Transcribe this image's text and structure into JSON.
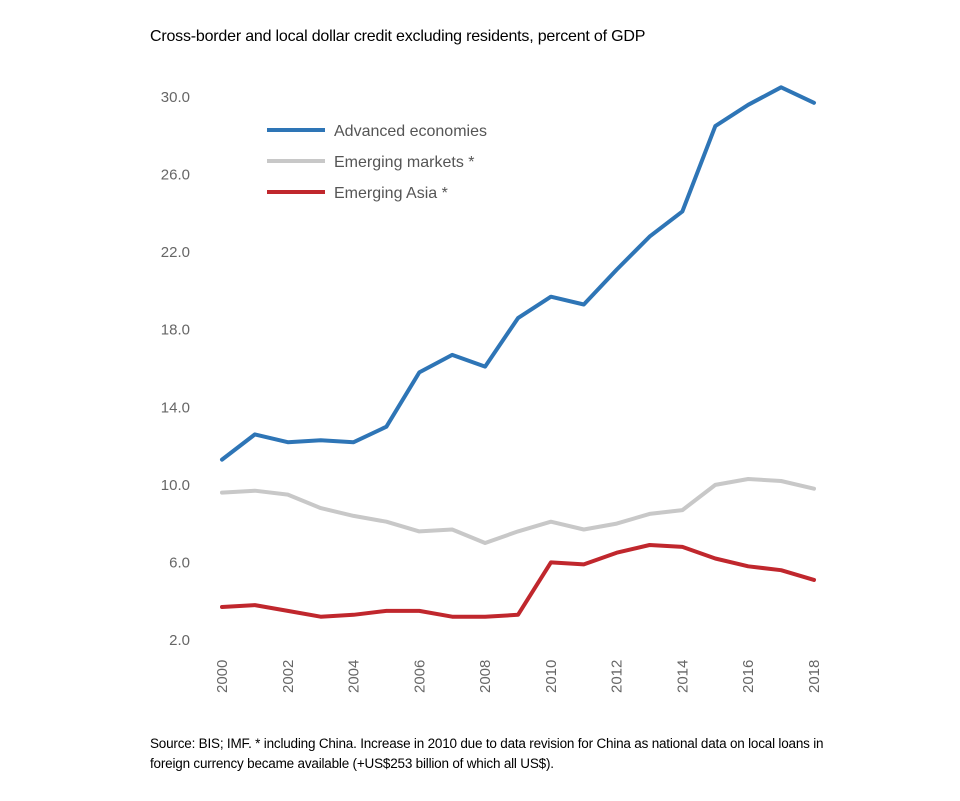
{
  "chart_data": {
    "type": "line",
    "title": "Cross-border and local dollar credit excluding residents, percent of GDP",
    "xlabel": "",
    "ylabel": "",
    "x": [
      2000,
      2001,
      2002,
      2003,
      2004,
      2005,
      2006,
      2007,
      2008,
      2009,
      2010,
      2011,
      2012,
      2013,
      2014,
      2015,
      2016,
      2017,
      2018
    ],
    "x_tick_labels": [
      "2000",
      "2002",
      "2004",
      "2006",
      "2008",
      "2010",
      "2012",
      "2014",
      "2016",
      "2018"
    ],
    "y_tick_labels": [
      "2.0",
      "6.0",
      "10.0",
      "14.0",
      "18.0",
      "22.0",
      "26.0",
      "30.0"
    ],
    "ylim": [
      2.0,
      30.0
    ],
    "grid": false,
    "legend_position": "top-left",
    "series": [
      {
        "name": "Advanced economies",
        "color": "#2e75b6",
        "values": [
          11.3,
          12.6,
          12.2,
          12.3,
          12.2,
          13.0,
          15.8,
          16.7,
          16.1,
          18.6,
          19.7,
          19.3,
          21.1,
          22.8,
          24.1,
          28.5,
          29.6,
          30.5,
          29.7
        ]
      },
      {
        "name": "Emerging markets *",
        "color": "#c8c8c8",
        "values": [
          9.6,
          9.7,
          9.5,
          8.8,
          8.4,
          8.1,
          7.6,
          7.7,
          7.0,
          7.6,
          8.1,
          7.7,
          8.0,
          8.5,
          8.7,
          10.0,
          10.3,
          10.2,
          9.8
        ]
      },
      {
        "name": "Emerging Asia *",
        "color": "#c0272d",
        "values": [
          3.7,
          3.8,
          3.5,
          3.2,
          3.3,
          3.5,
          3.5,
          3.2,
          3.2,
          3.3,
          6.0,
          5.9,
          6.5,
          6.9,
          6.8,
          6.2,
          5.8,
          5.6,
          5.1
        ]
      }
    ],
    "note": "Source: BIS; IMF. * including China. Increase in 2010 due to data revision for China as national data on local loans in foreign currency became available (+US$253 billion of which all US$)."
  }
}
